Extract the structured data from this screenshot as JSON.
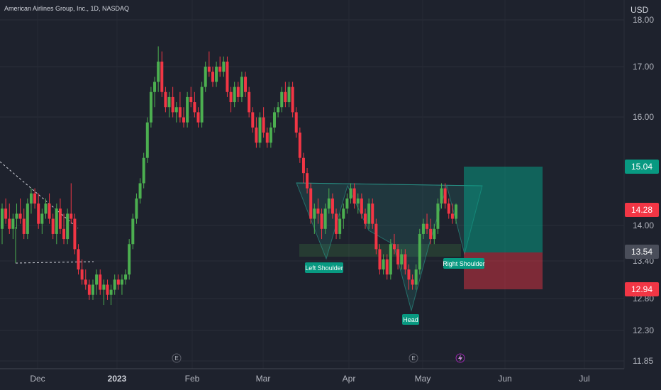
{
  "chart_data": {
    "type": "candlestick",
    "title": "American Airlines Group, Inc., 1D, NASDAQ",
    "currency": "USD",
    "y_axis": {
      "ticks": [
        "18.00",
        "17.00",
        "16.00",
        "15.04",
        "14.28",
        "14.00",
        "13.54",
        "13.40",
        "12.94",
        "12.80",
        "12.30",
        "11.85"
      ],
      "range": [
        11.85,
        18.0
      ]
    },
    "x_axis": {
      "ticks": [
        "Dec",
        "2023",
        "Feb",
        "Mar",
        "Apr",
        "May",
        "Jun",
        "Jul"
      ]
    },
    "price_labels": [
      {
        "value": "15.04",
        "color": "#089981"
      },
      {
        "value": "14.28",
        "color": "#f23645"
      },
      {
        "value": "13.54",
        "color": "#4a4e5a"
      },
      {
        "value": "12.94",
        "color": "#f23645"
      }
    ],
    "annotations": [
      "Left Shoulder",
      "Head",
      "Right Shoulder"
    ],
    "position_tool": {
      "target": 15.04,
      "entry": 13.54,
      "stop": 12.94
    },
    "neckline_zone": [
      13.54,
      13.75
    ],
    "colors": {
      "up": "#4caf50",
      "down": "#f23645",
      "grid": "#2a2e39",
      "text": "#b2b5be",
      "background": "#1e222d"
    },
    "candles": [
      [
        13.8,
        14.3,
        13.5,
        14.2
      ],
      [
        14.2,
        14.4,
        13.9,
        14.0
      ],
      [
        14.0,
        14.3,
        13.7,
        13.8
      ],
      [
        13.8,
        14.1,
        13.6,
        14.0
      ],
      [
        14.0,
        14.3,
        13.8,
        14.1
      ],
      [
        14.1,
        14.4,
        13.9,
        14.0
      ],
      [
        14.0,
        14.2,
        13.6,
        13.7
      ],
      [
        13.7,
        14.4,
        13.6,
        14.3
      ],
      [
        14.3,
        14.6,
        14.1,
        14.5
      ],
      [
        14.5,
        14.6,
        14.2,
        14.3
      ],
      [
        14.3,
        14.5,
        13.8,
        13.9
      ],
      [
        13.9,
        14.2,
        13.7,
        14.1
      ],
      [
        14.1,
        14.4,
        14.0,
        14.3
      ],
      [
        14.3,
        14.5,
        13.9,
        14.0
      ],
      [
        14.0,
        14.1,
        13.6,
        13.7
      ],
      [
        13.7,
        14.3,
        13.5,
        14.2
      ],
      [
        14.2,
        14.4,
        13.7,
        13.8
      ],
      [
        13.8,
        14.1,
        13.5,
        13.6
      ],
      [
        13.6,
        14.2,
        13.5,
        14.1
      ],
      [
        14.1,
        14.7,
        13.9,
        14.0
      ],
      [
        14.0,
        14.1,
        13.3,
        13.4
      ],
      [
        13.4,
        13.5,
        12.9,
        13.0
      ],
      [
        13.0,
        13.2,
        12.7,
        12.8
      ],
      [
        12.8,
        13.0,
        12.6,
        12.7
      ],
      [
        12.7,
        12.8,
        12.4,
        12.5
      ],
      [
        12.5,
        12.8,
        12.4,
        12.7
      ],
      [
        12.7,
        13.0,
        12.5,
        12.9
      ],
      [
        12.9,
        13.0,
        12.5,
        12.6
      ],
      [
        12.6,
        12.8,
        12.3,
        12.7
      ],
      [
        12.7,
        12.8,
        12.4,
        12.5
      ],
      [
        12.5,
        12.7,
        12.3,
        12.6
      ],
      [
        12.6,
        12.9,
        12.5,
        12.8
      ],
      [
        12.8,
        12.9,
        12.6,
        12.7
      ],
      [
        12.7,
        12.9,
        12.5,
        12.8
      ],
      [
        12.8,
        13.0,
        12.7,
        12.9
      ],
      [
        12.9,
        13.6,
        12.8,
        13.5
      ],
      [
        13.5,
        14.1,
        13.4,
        14.0
      ],
      [
        14.0,
        14.5,
        13.9,
        14.4
      ],
      [
        14.4,
        14.8,
        14.3,
        14.7
      ],
      [
        14.7,
        15.3,
        14.6,
        15.2
      ],
      [
        15.2,
        16.0,
        15.1,
        15.9
      ],
      [
        15.9,
        16.6,
        15.8,
        16.5
      ],
      [
        16.5,
        16.8,
        16.2,
        16.7
      ],
      [
        16.7,
        17.4,
        16.5,
        17.1
      ],
      [
        17.1,
        17.3,
        16.4,
        16.5
      ],
      [
        16.5,
        16.6,
        16.1,
        16.2
      ],
      [
        16.2,
        16.5,
        16.0,
        16.4
      ],
      [
        16.4,
        16.6,
        16.0,
        16.1
      ],
      [
        16.1,
        16.3,
        15.9,
        16.2
      ],
      [
        16.2,
        16.5,
        15.9,
        16.0
      ],
      [
        16.0,
        16.2,
        15.8,
        15.9
      ],
      [
        15.9,
        16.5,
        15.8,
        16.4
      ],
      [
        16.4,
        16.6,
        16.2,
        16.3
      ],
      [
        16.3,
        16.5,
        16.0,
        16.1
      ],
      [
        16.1,
        16.2,
        15.8,
        15.9
      ],
      [
        15.9,
        16.7,
        15.8,
        16.6
      ],
      [
        16.6,
        17.1,
        16.5,
        17.0
      ],
      [
        17.0,
        17.3,
        16.8,
        16.9
      ],
      [
        16.9,
        17.0,
        16.6,
        16.7
      ],
      [
        16.7,
        17.1,
        16.6,
        17.0
      ],
      [
        17.0,
        17.2,
        16.8,
        16.9
      ],
      [
        16.9,
        17.2,
        16.8,
        17.1
      ],
      [
        17.1,
        17.2,
        16.4,
        16.5
      ],
      [
        16.5,
        16.6,
        16.1,
        16.3
      ],
      [
        16.3,
        16.7,
        16.2,
        16.6
      ],
      [
        16.6,
        16.7,
        16.3,
        16.4
      ],
      [
        16.4,
        16.9,
        16.3,
        16.8
      ],
      [
        16.8,
        16.9,
        16.4,
        16.5
      ],
      [
        16.5,
        16.6,
        16.0,
        16.1
      ],
      [
        16.1,
        16.2,
        15.7,
        15.8
      ],
      [
        15.8,
        16.0,
        15.4,
        15.5
      ],
      [
        15.5,
        16.1,
        15.4,
        16.0
      ],
      [
        16.0,
        16.2,
        15.6,
        15.7
      ],
      [
        15.7,
        15.8,
        15.4,
        15.5
      ],
      [
        15.5,
        15.9,
        15.4,
        15.8
      ],
      [
        15.8,
        16.2,
        15.7,
        16.1
      ],
      [
        16.1,
        16.3,
        16.0,
        16.2
      ],
      [
        16.2,
        16.6,
        16.1,
        16.5
      ],
      [
        16.5,
        16.7,
        16.2,
        16.3
      ],
      [
        16.3,
        16.7,
        16.2,
        16.6
      ],
      [
        16.6,
        16.7,
        16.0,
        16.1
      ],
      [
        16.1,
        16.2,
        15.6,
        15.7
      ],
      [
        15.7,
        15.8,
        15.1,
        15.2
      ],
      [
        15.2,
        15.3,
        14.7,
        14.9
      ],
      [
        14.9,
        15.0,
        14.5,
        14.6
      ],
      [
        14.6,
        14.7,
        13.9,
        14.0
      ],
      [
        14.0,
        14.3,
        13.7,
        14.2
      ],
      [
        14.2,
        14.4,
        13.9,
        14.1
      ],
      [
        14.1,
        14.2,
        13.6,
        13.8
      ],
      [
        13.8,
        14.3,
        13.7,
        14.2
      ],
      [
        14.2,
        14.6,
        14.1,
        14.4
      ],
      [
        14.4,
        14.5,
        14.0,
        14.1
      ],
      [
        14.1,
        14.2,
        13.6,
        13.7
      ],
      [
        13.7,
        14.1,
        13.6,
        14.0
      ],
      [
        14.0,
        14.3,
        13.8,
        14.2
      ],
      [
        14.2,
        14.5,
        14.1,
        14.4
      ],
      [
        14.4,
        14.7,
        14.3,
        14.6
      ],
      [
        14.6,
        14.7,
        14.2,
        14.3
      ],
      [
        14.3,
        14.5,
        14.1,
        14.4
      ],
      [
        14.4,
        14.5,
        14.0,
        14.1
      ],
      [
        14.1,
        14.2,
        13.8,
        13.9
      ],
      [
        13.9,
        14.4,
        13.8,
        14.3
      ],
      [
        14.3,
        14.4,
        13.8,
        13.9
      ],
      [
        13.9,
        14.0,
        13.3,
        13.4
      ],
      [
        13.4,
        13.5,
        12.9,
        13.0
      ],
      [
        13.0,
        13.3,
        12.9,
        13.2
      ],
      [
        13.2,
        13.3,
        12.8,
        12.9
      ],
      [
        12.9,
        13.6,
        12.8,
        13.5
      ],
      [
        13.5,
        13.7,
        13.3,
        13.4
      ],
      [
        13.4,
        13.5,
        13.0,
        13.1
      ],
      [
        13.1,
        13.4,
        13.0,
        13.3
      ],
      [
        13.3,
        13.4,
        12.9,
        13.0
      ],
      [
        13.0,
        13.1,
        12.6,
        12.8
      ],
      [
        12.8,
        12.9,
        12.6,
        12.7
      ],
      [
        12.7,
        13.1,
        12.6,
        13.0
      ],
      [
        13.0,
        13.8,
        12.9,
        13.7
      ],
      [
        13.7,
        14.0,
        13.6,
        13.9
      ],
      [
        13.9,
        14.1,
        13.7,
        13.8
      ],
      [
        13.8,
        14.0,
        13.5,
        13.6
      ],
      [
        13.6,
        13.9,
        13.5,
        13.8
      ],
      [
        13.8,
        14.4,
        13.7,
        14.3
      ],
      [
        14.3,
        14.7,
        14.2,
        14.6
      ],
      [
        14.6,
        14.7,
        14.2,
        14.3
      ],
      [
        14.3,
        14.4,
        14.0,
        14.1
      ],
      [
        14.1,
        14.3,
        13.9,
        14.0
      ],
      [
        14.0,
        14.3,
        13.9,
        14.28
      ]
    ]
  }
}
